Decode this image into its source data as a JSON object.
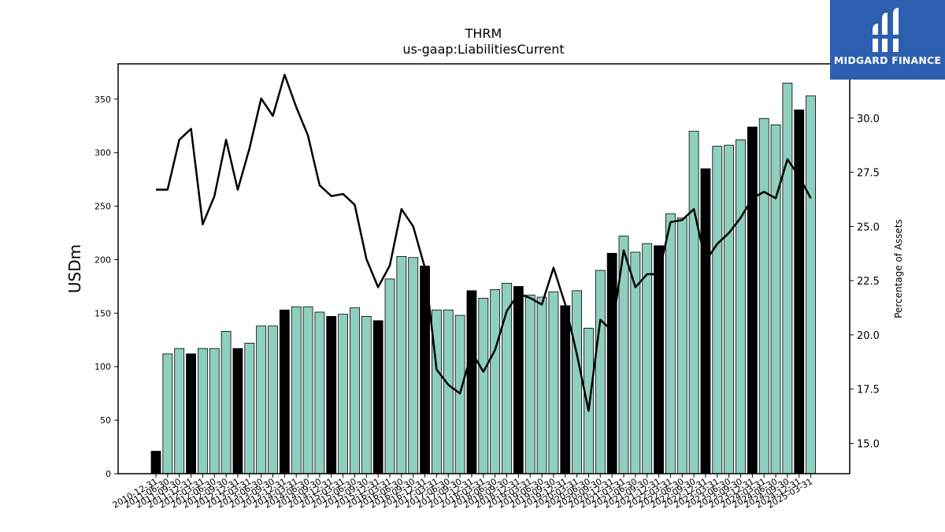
{
  "chart_data": {
    "type": "bar",
    "title": "THRM",
    "subtitle": "us-gaap:LiabilitiesCurrent",
    "ylabel": "USDm",
    "ylabel_right": "Percentage of Assets",
    "ylim": [
      0,
      383
    ],
    "ylim_right": [
      13.6,
      32.5
    ],
    "y_ticks": [
      0,
      50,
      100,
      150,
      200,
      250,
      300,
      350
    ],
    "y_ticks_right": [
      "15.0",
      "17.5",
      "20.0",
      "22.5",
      "25.0",
      "27.5",
      "30.0"
    ],
    "categories": [
      "2010-12-31",
      "2011-06-30",
      "2011-09-30",
      "2011-12-31",
      "2012-03-31",
      "2012-06-30",
      "2012-09-30",
      "2012-12-31",
      "2013-03-31",
      "2013-06-30",
      "2013-09-30",
      "2013-12-31",
      "2014-03-31",
      "2014-06-30",
      "2014-09-30",
      "2014-12-31",
      "2015-03-31",
      "2015-06-30",
      "2015-09-30",
      "2015-12-31",
      "2016-03-31",
      "2016-06-30",
      "2016-09-30",
      "2016-12-31",
      "2017-03-31",
      "2017-06-30",
      "2017-09-30",
      "2017-12-31",
      "2018-03-31",
      "2018-06-30",
      "2018-09-30",
      "2018-12-31",
      "2019-03-31",
      "2019-06-30",
      "2019-09-30",
      "2019-12-31",
      "2020-03-31",
      "2020-06-30",
      "2020-09-30",
      "2020-12-31",
      "2021-03-31",
      "2021-06-30",
      "2021-09-30",
      "2021-12-31",
      "2022-03-31",
      "2022-06-30",
      "2022-09-30",
      "2022-12-31",
      "2023-03-31",
      "2023-06-30",
      "2023-09-30",
      "2023-12-31",
      "2024-03-31",
      "2024-06-30",
      "2024-09-30",
      "2024-12-31",
      "2025-03-31"
    ],
    "series": [
      {
        "kind": "bar",
        "values": [
          21,
          112,
          117,
          112,
          117,
          117,
          133,
          117,
          122,
          138,
          138,
          153,
          156,
          156,
          151,
          147,
          149,
          155,
          147,
          143,
          182,
          203,
          202,
          194,
          153,
          153,
          148,
          171,
          164,
          172,
          178,
          175,
          167,
          165,
          170,
          157,
          171,
          136,
          190,
          206,
          222,
          207,
          215,
          213,
          243,
          239,
          320,
          285,
          306,
          307,
          312,
          324,
          332,
          326,
          365,
          340,
          353
        ]
      },
      {
        "kind": "line",
        "axis": "right",
        "values": [
          26.7,
          26.7,
          29.0,
          29.5,
          25.1,
          26.4,
          29.0,
          26.7,
          28.6,
          30.9,
          30.1,
          32.0,
          30.5,
          29.2,
          26.9,
          26.4,
          26.5,
          26.0,
          23.5,
          22.2,
          23.2,
          25.8,
          25.0,
          23.1,
          18.4,
          17.7,
          17.3,
          19.2,
          18.3,
          19.3,
          21.1,
          21.9,
          21.7,
          21.4,
          23.1,
          21.4,
          19.1,
          16.5,
          20.7,
          20.2,
          23.9,
          22.2,
          22.8,
          22.8,
          25.2,
          25.3,
          25.8,
          23.4,
          24.2,
          24.7,
          25.4,
          26.3,
          26.6,
          26.3,
          28.1,
          27.3,
          26.3
        ]
      }
    ],
    "bar_colors": {
      "default": "#8ecfc0",
      "year_end": "#000000"
    },
    "line_color": "#000000",
    "grid": false,
    "legend": "none"
  },
  "branding": {
    "logo_text": "MIDGARD FINANCE",
    "logo_color": "#2d5fb0"
  }
}
